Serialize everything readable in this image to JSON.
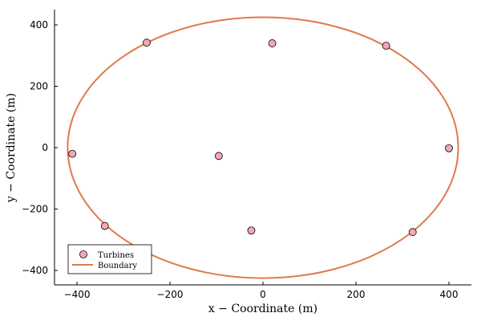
{
  "chart_data": {
    "type": "scatter",
    "title": "",
    "xlabel": "x − Coordinate (m)",
    "ylabel": "y − Coordinate (m)",
    "xlim": [
      -450,
      450
    ],
    "ylim": [
      -450,
      450
    ],
    "xticks": [
      -400,
      -200,
      0,
      200,
      400
    ],
    "yticks": [
      -400,
      -200,
      0,
      200,
      400
    ],
    "grid": false,
    "legend_position": "bottom-left",
    "series": [
      {
        "name": "Turbines",
        "kind": "scatter",
        "color": "#f4a8b4",
        "points": [
          {
            "x": -250,
            "y": 342
          },
          {
            "x": 20,
            "y": 340
          },
          {
            "x": 265,
            "y": 332
          },
          {
            "x": -410,
            "y": -20
          },
          {
            "x": -95,
            "y": -27
          },
          {
            "x": 400,
            "y": -2
          },
          {
            "x": -340,
            "y": -255
          },
          {
            "x": -25,
            "y": -270
          },
          {
            "x": 322,
            "y": -275
          }
        ]
      },
      {
        "name": "Boundary",
        "kind": "ellipse",
        "color": "#e07a4a",
        "center": [
          0,
          0
        ],
        "semi_axis_x": 420,
        "semi_axis_y": 425
      }
    ]
  }
}
